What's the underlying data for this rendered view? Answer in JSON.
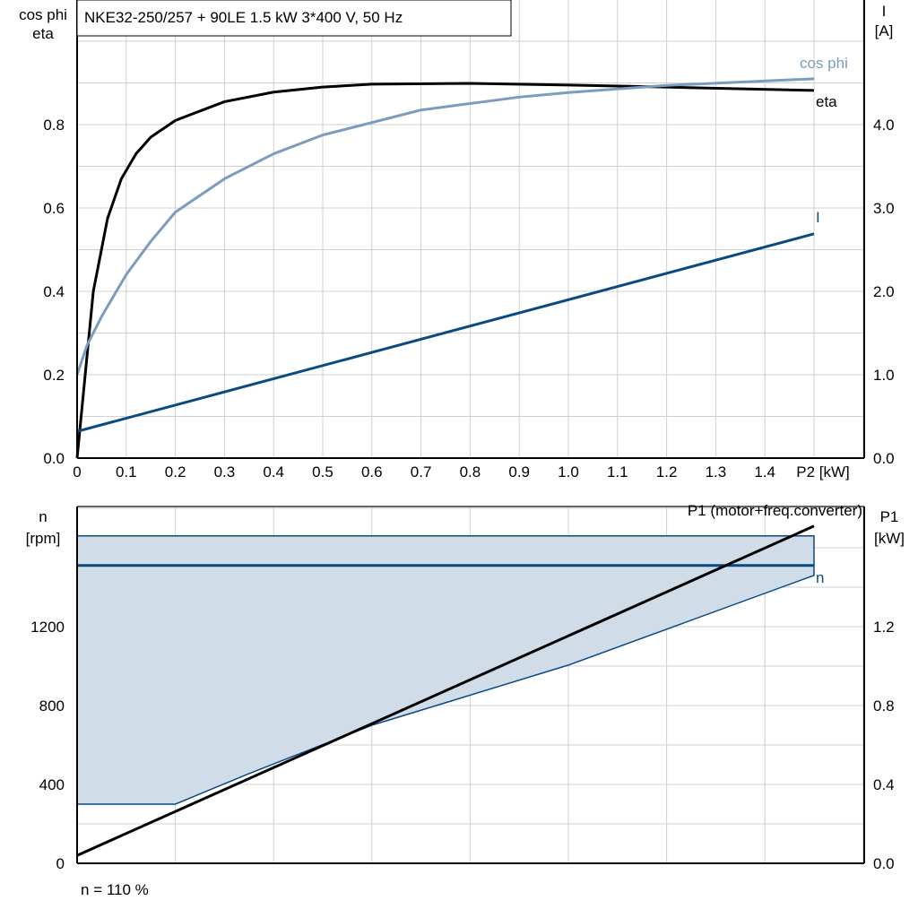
{
  "title": "NKE32-250/257 + 90LE   1.5 kW   3*400 V, 50 Hz",
  "footer": "n = 110 %",
  "colors": {
    "eta": "#000000",
    "cos_phi": "#7a9cbf",
    "current": "#0b4a80",
    "speed": "#0b4a80",
    "speed_fill": "#d0dce8",
    "p1": "#000000",
    "grid": "#d0d0d0"
  },
  "chart_data": [
    {
      "type": "line",
      "xlabel": "P2 [kW]",
      "ylabel_left": [
        "cos phi",
        "eta"
      ],
      "ylabel_right": [
        "I",
        "[A]"
      ],
      "xlim": [
        0,
        1.6
      ],
      "ylim_left": [
        0,
        1.1
      ],
      "ylim_right": [
        0,
        5.5
      ],
      "grid": true,
      "xticks": [
        "0",
        "0.1",
        "0.2",
        "0.3",
        "0.4",
        "0.5",
        "0.6",
        "0.7",
        "0.8",
        "0.9",
        "1.0",
        "1.1",
        "1.2",
        "1.3",
        "1.4"
      ],
      "yticks_left": [
        "0.0",
        "0.2",
        "0.4",
        "0.6",
        "0.8"
      ],
      "yticks_right": [
        "0.0",
        "1.0",
        "2.0",
        "3.0",
        "4.0"
      ],
      "series": [
        {
          "name": "eta",
          "axis": "left",
          "x": [
            0,
            0.033,
            0.062,
            0.09,
            0.12,
            0.15,
            0.2,
            0.3,
            0.4,
            0.5,
            0.6,
            0.8,
            1.0,
            1.2,
            1.5
          ],
          "y": [
            0,
            0.4,
            0.575,
            0.67,
            0.73,
            0.77,
            0.81,
            0.855,
            0.878,
            0.89,
            0.897,
            0.899,
            0.895,
            0.89,
            0.882
          ]
        },
        {
          "name": "cos phi",
          "axis": "left",
          "x": [
            0,
            0.02,
            0.05,
            0.1,
            0.15,
            0.2,
            0.3,
            0.4,
            0.5,
            0.7,
            0.9,
            1.0,
            1.2,
            1.5
          ],
          "y": [
            0.2,
            0.27,
            0.34,
            0.44,
            0.52,
            0.59,
            0.67,
            0.73,
            0.775,
            0.835,
            0.866,
            0.877,
            0.894,
            0.91
          ]
        },
        {
          "name": "I",
          "axis": "right",
          "x": [
            0,
            1.5
          ],
          "y": [
            0.32,
            2.69
          ]
        }
      ]
    },
    {
      "type": "area",
      "ylabel_left": [
        "n",
        "[rpm]"
      ],
      "ylabel_right": [
        "P1",
        "[kW]"
      ],
      "xlim": [
        0,
        1.6
      ],
      "ylim_left": [
        0,
        1800
      ],
      "ylim_right": [
        0,
        1.8
      ],
      "grid": true,
      "yticks_left": [
        "0",
        "400",
        "800",
        "1200"
      ],
      "yticks_right": [
        "0.0",
        "0.4",
        "0.8",
        "1.2"
      ],
      "series": [
        {
          "name": "n",
          "kind": "band",
          "x_max": [
            0,
            1.5
          ],
          "n_max": [
            1660,
            1660
          ],
          "x_min": [
            0,
            0.2,
            0.35,
            0.6,
            1.0,
            1.5
          ],
          "n_min": [
            300,
            300,
            455,
            700,
            1005,
            1460
          ]
        },
        {
          "kind": "line",
          "x": [
            0,
            1.5
          ],
          "n": [
            1510,
            1510
          ]
        },
        {
          "name": "P1 (motor+freq.converter)",
          "axis": "right",
          "x": [
            0,
            1.5
          ],
          "y": [
            0.04,
            1.71
          ]
        }
      ]
    }
  ]
}
